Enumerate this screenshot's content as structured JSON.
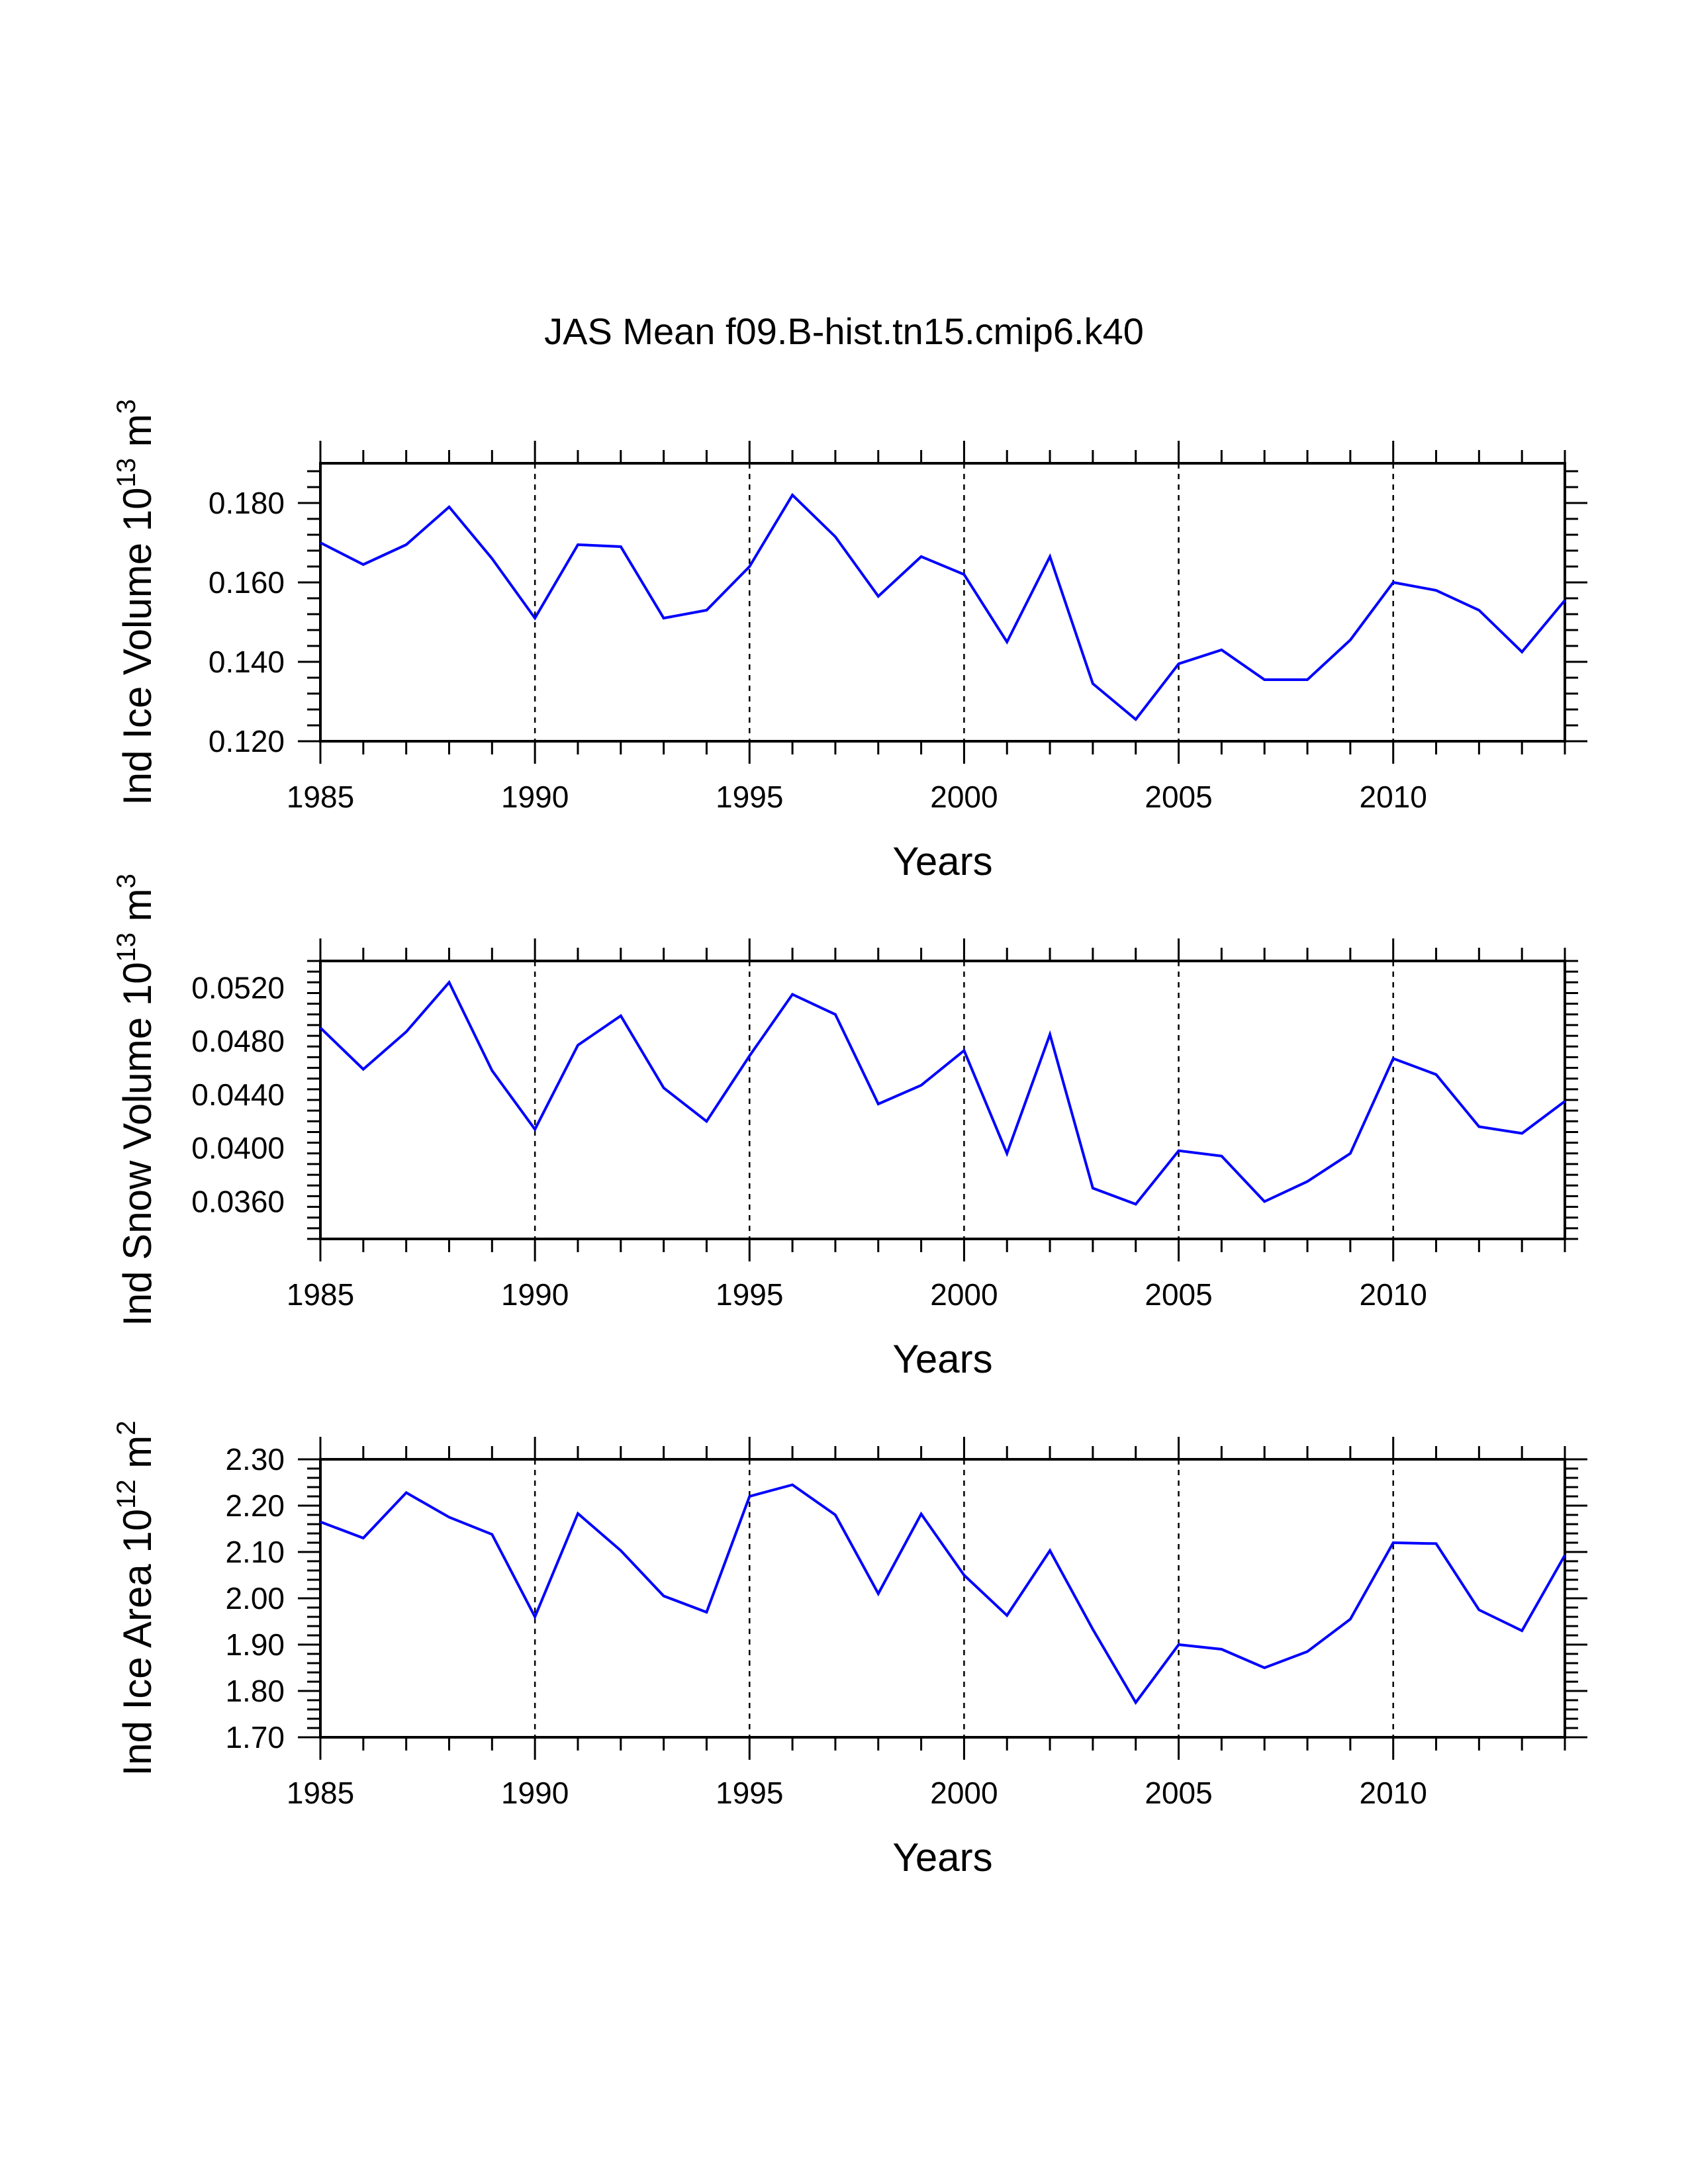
{
  "page_title": "JAS Mean f09.B-hist.tn15.cmip6.k40",
  "chart_data": [
    {
      "type": "line",
      "title": "JAS Mean f09.B-hist.tn15.cmip6.k40",
      "xlabel": "Years",
      "ylabel": {
        "base": "Ind Ice Volume 10",
        "exp": "13",
        "unit": " m",
        "unit_exp": "3"
      },
      "xlim": [
        1985,
        2014
      ],
      "ylim": [
        0.12,
        0.19
      ],
      "x_major_ticks": [
        1985,
        1990,
        1995,
        2000,
        2005,
        2010
      ],
      "x_tick_labels": [
        "1985",
        "1990",
        "1995",
        "2000",
        "2005",
        "2010"
      ],
      "y_major_ticks": [
        0.12,
        0.14,
        0.16,
        0.18
      ],
      "y_tick_labels": [
        "0.120",
        "0.140",
        "0.160",
        "0.180"
      ],
      "y_minor_step": 0.004,
      "grid_x": [
        1990,
        1995,
        2000,
        2005,
        2010
      ],
      "x": [
        1985,
        1986,
        1987,
        1988,
        1989,
        1990,
        1991,
        1992,
        1993,
        1994,
        1995,
        1996,
        1997,
        1998,
        1999,
        2000,
        2001,
        2002,
        2003,
        2004,
        2005,
        2006,
        2007,
        2008,
        2009,
        2010,
        2011,
        2012,
        2013,
        2014
      ],
      "series": [
        {
          "name": "Ind Ice Volume",
          "color": "#0000ff",
          "values": [
            0.17,
            0.1645,
            0.1695,
            0.179,
            0.166,
            0.151,
            0.1695,
            0.169,
            0.151,
            0.153,
            0.164,
            0.182,
            0.1715,
            0.1565,
            0.1665,
            0.162,
            0.145,
            0.1665,
            0.1345,
            0.1255,
            0.1395,
            0.143,
            0.1355,
            0.1355,
            0.1455,
            0.16,
            0.158,
            0.153,
            0.1425,
            0.1555
          ]
        }
      ]
    },
    {
      "type": "line",
      "xlabel": "Years",
      "ylabel": {
        "base": "Ind Snow Volume 10",
        "exp": "13",
        "unit": " m",
        "unit_exp": "3"
      },
      "xlim": [
        1985,
        2014
      ],
      "ylim": [
        0.0332,
        0.054
      ],
      "x_major_ticks": [
        1985,
        1990,
        1995,
        2000,
        2005,
        2010
      ],
      "x_tick_labels": [
        "1985",
        "1990",
        "1995",
        "2000",
        "2005",
        "2010"
      ],
      "y_major_ticks": [
        0.036,
        0.04,
        0.044,
        0.048,
        0.052
      ],
      "y_tick_labels": [
        "0.0360",
        "0.0400",
        "0.0440",
        "0.0480",
        "0.0520"
      ],
      "y_minor_step": 0.0008,
      "grid_x": [
        1990,
        1995,
        2000,
        2005,
        2010
      ],
      "x": [
        1985,
        1986,
        1987,
        1988,
        1989,
        1990,
        1991,
        1992,
        1993,
        1994,
        1995,
        1996,
        1997,
        1998,
        1999,
        2000,
        2001,
        2002,
        2003,
        2004,
        2005,
        2006,
        2007,
        2008,
        2009,
        2010,
        2011,
        2012,
        2013,
        2014
      ],
      "series": [
        {
          "name": "Ind Snow Volume",
          "color": "#0000ff",
          "values": [
            0.049,
            0.0459,
            0.0487,
            0.0524,
            0.0458,
            0.0414,
            0.0477,
            0.0499,
            0.0445,
            0.042,
            0.0469,
            0.0515,
            0.05,
            0.0433,
            0.0447,
            0.0473,
            0.0396,
            0.0485,
            0.037,
            0.0358,
            0.0398,
            0.0394,
            0.036,
            0.0375,
            0.0396,
            0.0467,
            0.0455,
            0.0416,
            0.0411,
            0.0435
          ]
        }
      ]
    },
    {
      "type": "line",
      "xlabel": "Years",
      "ylabel": {
        "base": "Ind Ice Area 10",
        "exp": "12",
        "unit": " m",
        "unit_exp": "2"
      },
      "xlim": [
        1985,
        2014
      ],
      "ylim": [
        1.7,
        2.3
      ],
      "x_major_ticks": [
        1985,
        1990,
        1995,
        2000,
        2005,
        2010
      ],
      "x_tick_labels": [
        "1985",
        "1990",
        "1995",
        "2000",
        "2005",
        "2010"
      ],
      "y_major_ticks": [
        1.7,
        1.8,
        1.9,
        2.0,
        2.1,
        2.2,
        2.3
      ],
      "y_tick_labels": [
        "1.70",
        "1.80",
        "1.90",
        "2.00",
        "2.10",
        "2.20",
        "2.30"
      ],
      "y_minor_step": 0.02,
      "grid_x": [
        1990,
        1995,
        2000,
        2005,
        2010
      ],
      "x": [
        1985,
        1986,
        1987,
        1988,
        1989,
        1990,
        1991,
        1992,
        1993,
        1994,
        1995,
        1996,
        1997,
        1998,
        1999,
        2000,
        2001,
        2002,
        2003,
        2004,
        2005,
        2006,
        2007,
        2008,
        2009,
        2010,
        2011,
        2012,
        2013,
        2014
      ],
      "series": [
        {
          "name": "Ind Ice Area",
          "color": "#0000ff",
          "values": [
            2.165,
            2.13,
            2.228,
            2.175,
            2.138,
            1.96,
            2.183,
            2.103,
            2.005,
            1.97,
            2.22,
            2.245,
            2.18,
            2.01,
            2.182,
            2.05,
            1.963,
            2.103,
            1.933,
            1.775,
            1.9,
            1.89,
            1.85,
            1.885,
            1.955,
            2.12,
            2.118,
            1.975,
            1.93,
            2.093
          ]
        }
      ]
    }
  ]
}
